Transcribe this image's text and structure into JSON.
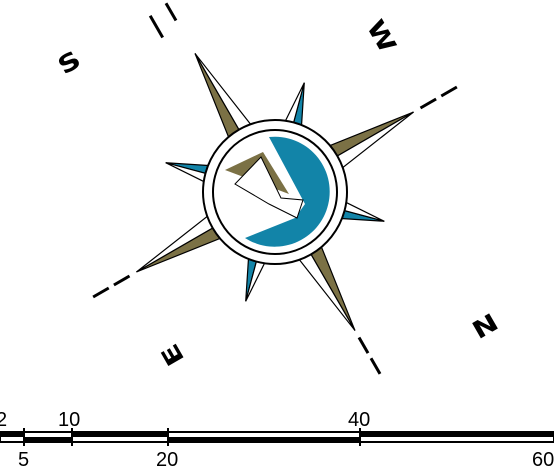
{
  "compass": {
    "labels": {
      "north": "N",
      "south": "S",
      "east": "E",
      "west": "W"
    },
    "colors": {
      "olive": "#7b7145",
      "teal": "#1284a8",
      "outline": "#000000",
      "background": "#ffffff"
    }
  },
  "scale_bar": {
    "top_labels": [
      "2",
      "10",
      "40"
    ],
    "bottom_labels": [
      "5",
      "20",
      "60"
    ]
  }
}
